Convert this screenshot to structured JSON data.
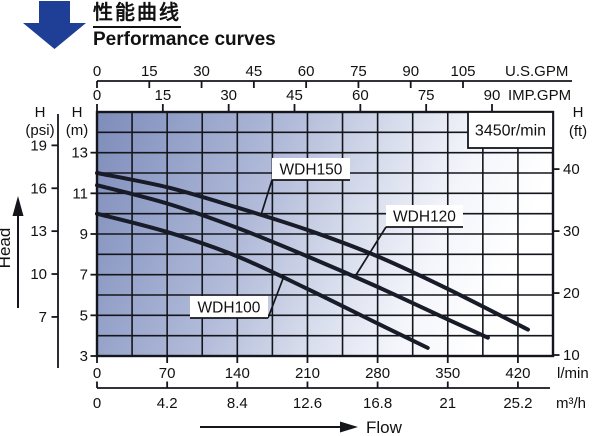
{
  "chart_data": {
    "type": "line",
    "title": "性能曲线",
    "subtitle": "Performance curves",
    "annotation": "3450r/min",
    "axis_titles": {
      "y": "Head",
      "x": "Flow"
    },
    "x_axes": [
      {
        "id": "us_gpm",
        "unit": "U.S.GPM",
        "ticks": [
          0,
          15,
          30,
          45,
          60,
          75,
          90,
          105
        ],
        "max": 105
      },
      {
        "id": "imp_gpm",
        "unit": "IMP.GPM",
        "ticks": [
          0,
          15,
          30,
          45,
          60,
          75,
          90
        ],
        "max": 90
      },
      {
        "id": "l_min",
        "unit": "l/min",
        "ticks": [
          0,
          70,
          140,
          210,
          280,
          350,
          420
        ],
        "max": 455
      },
      {
        "id": "m3_h",
        "unit": "m³/h",
        "ticks": [
          0,
          4.2,
          8.4,
          12.6,
          16.8,
          21,
          25.2
        ],
        "max": 27.3
      }
    ],
    "y_axes": [
      {
        "id": "psi",
        "label": "H",
        "unit": "(psi)",
        "ticks": [
          19,
          16,
          13,
          10,
          7
        ],
        "m_per_unit": 0.7031
      },
      {
        "id": "m",
        "label": "H",
        "unit": "(m)",
        "ticks": [
          13,
          11,
          9,
          7,
          5,
          3
        ],
        "m_per_unit": 1
      },
      {
        "id": "ft",
        "label": "H",
        "unit": "(ft)",
        "ticks": [
          40,
          30,
          20,
          10
        ],
        "m_per_unit": 0.3048
      }
    ],
    "x_range_l_min": [
      0,
      455
    ],
    "y_range_m": [
      3,
      15
    ],
    "grid": {
      "x_step_l_min": 35,
      "y_step_m": 1
    },
    "series": [
      {
        "name": "WDH150",
        "points": [
          [
            0,
            12.0
          ],
          [
            70,
            11.3
          ],
          [
            140,
            10.3
          ],
          [
            210,
            9.2
          ],
          [
            280,
            7.9
          ],
          [
            350,
            6.3
          ],
          [
            430,
            4.3
          ]
        ]
      },
      {
        "name": "WDH120",
        "points": [
          [
            0,
            11.4
          ],
          [
            70,
            10.5
          ],
          [
            140,
            9.3
          ],
          [
            210,
            7.9
          ],
          [
            280,
            6.4
          ],
          [
            350,
            4.8
          ],
          [
            390,
            3.9
          ]
        ]
      },
      {
        "name": "WDH100",
        "points": [
          [
            0,
            10.0
          ],
          [
            70,
            9.1
          ],
          [
            140,
            7.9
          ],
          [
            210,
            6.3
          ],
          [
            280,
            4.6
          ],
          [
            330,
            3.4
          ]
        ]
      }
    ],
    "colors": {
      "curve": "#181c28",
      "grid_line": "#14161c",
      "arrow_blue": "#1f3e96",
      "plot_gradient": [
        "#7e8cba",
        "#93a0c8",
        "#b2bbd9",
        "#d6dcec",
        "#f4f5fb",
        "#ffffff"
      ]
    }
  }
}
